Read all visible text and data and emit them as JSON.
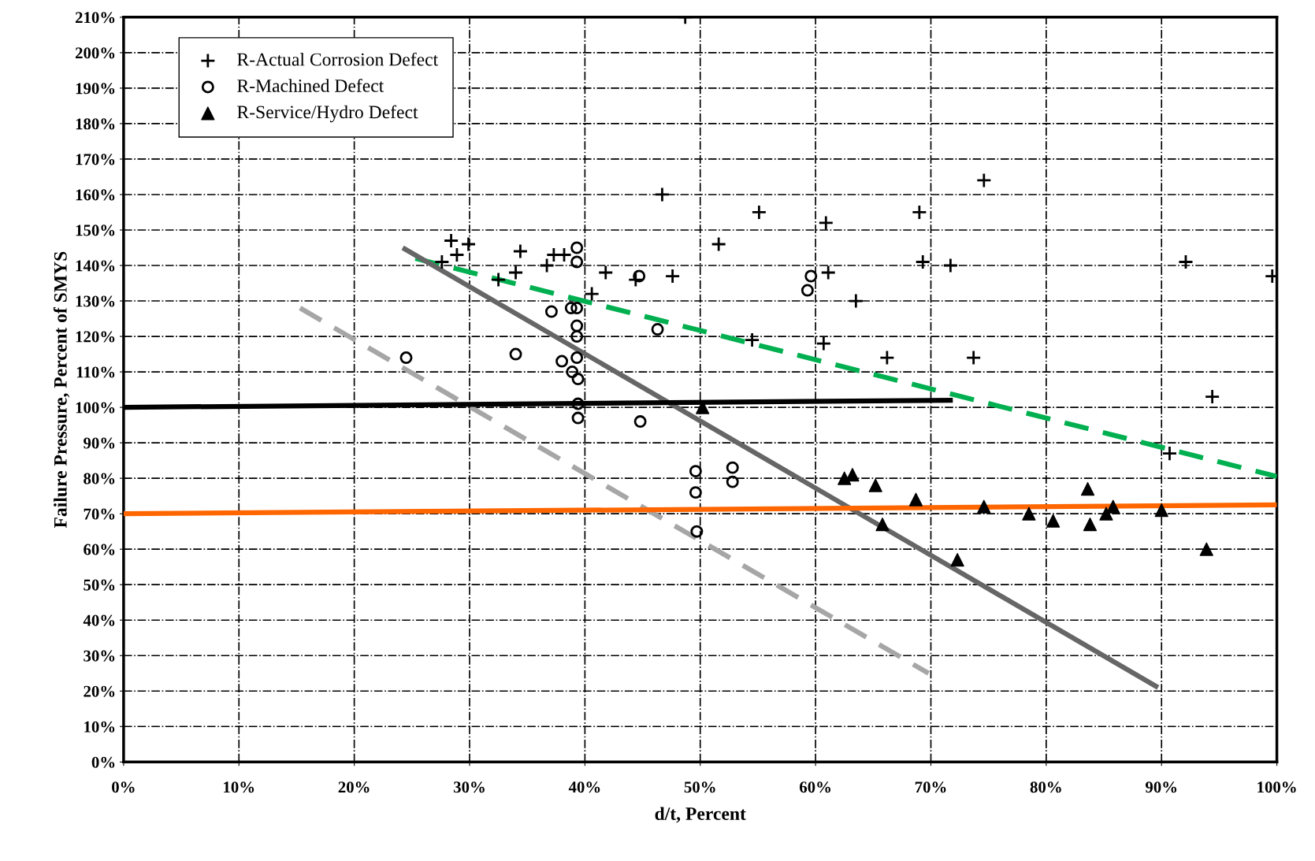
{
  "chart_data": {
    "type": "scatter",
    "xlabel": "d/t, Percent",
    "ylabel": "Failure Pressure, Percent of SMYS",
    "xlim": [
      0,
      100
    ],
    "ylim": [
      0,
      210
    ],
    "xticks": [
      {
        "value": 0,
        "label": "0%"
      },
      {
        "value": 10,
        "label": "10%"
      },
      {
        "value": 20,
        "label": "20%"
      },
      {
        "value": 30,
        "label": "30%"
      },
      {
        "value": 40,
        "label": "40%"
      },
      {
        "value": 50,
        "label": "50%"
      },
      {
        "value": 60,
        "label": "60%"
      },
      {
        "value": 70,
        "label": "70%"
      },
      {
        "value": 80,
        "label": "80%"
      },
      {
        "value": 90,
        "label": "90%"
      },
      {
        "value": 100,
        "label": "100%"
      }
    ],
    "yticks": [
      {
        "value": 0,
        "label": "0%"
      },
      {
        "value": 10,
        "label": "10%"
      },
      {
        "value": 20,
        "label": "20%"
      },
      {
        "value": 30,
        "label": "30%"
      },
      {
        "value": 40,
        "label": "40%"
      },
      {
        "value": 50,
        "label": "50%"
      },
      {
        "value": 60,
        "label": "60%"
      },
      {
        "value": 70,
        "label": "70%"
      },
      {
        "value": 80,
        "label": "80%"
      },
      {
        "value": 90,
        "label": "90%"
      },
      {
        "value": 100,
        "label": "100%"
      },
      {
        "value": 110,
        "label": "110%"
      },
      {
        "value": 120,
        "label": "120%"
      },
      {
        "value": 130,
        "label": "130%"
      },
      {
        "value": 140,
        "label": "140%"
      },
      {
        "value": 150,
        "label": "150%"
      },
      {
        "value": 160,
        "label": "160%"
      },
      {
        "value": 170,
        "label": "170%"
      },
      {
        "value": 180,
        "label": "180%"
      },
      {
        "value": 190,
        "label": "190%"
      },
      {
        "value": 200,
        "label": "200%"
      },
      {
        "value": 210,
        "label": "210%"
      }
    ],
    "grid": true,
    "legend": "top left",
    "series": [
      {
        "name": "R-Actual Corrosion Defect",
        "marker": "cross",
        "color": "#000000",
        "x": [
          48.7,
          46.7,
          55.1,
          60.9,
          51.6,
          69.0,
          74.6,
          92.1,
          99.6,
          69.3,
          71.7,
          61.1,
          47.6,
          41.8,
          44.4,
          40.6,
          63.5,
          54.5,
          60.7,
          66.2,
          73.7,
          94.4,
          90.7,
          28.4,
          29.9,
          28.9,
          27.6,
          34.4,
          34.0,
          32.5,
          36.7,
          37.3,
          38.2
        ],
        "values": [
          210,
          160,
          155,
          152,
          146,
          155,
          164,
          141,
          137,
          141,
          140,
          138,
          137,
          138,
          136,
          132,
          130,
          119,
          118,
          114,
          114,
          103,
          87,
          147,
          146,
          143,
          141,
          144,
          138,
          136,
          140,
          143,
          143
        ]
      },
      {
        "name": "R-Machined Defect",
        "marker": "circle",
        "color": "#000000",
        "x": [
          24.5,
          34.0,
          37.1,
          38.0,
          38.8,
          39.3,
          39.3,
          39.3,
          39.3,
          39.3,
          39.3,
          38.9,
          39.4,
          39.4,
          39.4,
          44.7,
          46.3,
          44.8,
          49.6,
          49.6,
          49.7,
          52.8,
          52.8,
          59.6,
          59.3
        ],
        "values": [
          114,
          115,
          127,
          113,
          128,
          145,
          141,
          128,
          123,
          120,
          114,
          110,
          108,
          101,
          97,
          137,
          122,
          96,
          82,
          76,
          65,
          83,
          79,
          137,
          133
        ]
      },
      {
        "name": "R-Service/Hydro Defect",
        "marker": "triangle",
        "color": "#000000",
        "x": [
          50.2,
          62.5,
          63.2,
          65.2,
          65.8,
          68.7,
          72.3,
          74.6,
          78.5,
          80.6,
          83.6,
          83.8,
          85.2,
          85.8,
          90.0,
          93.9
        ],
        "values": [
          100,
          80,
          81,
          78,
          67,
          74,
          57,
          72,
          70,
          68,
          77,
          67,
          70,
          72,
          71,
          60
        ]
      },
      {
        "type": "line",
        "line_style": "dashed",
        "color": "#00b050",
        "x": [
          25.3,
          100
        ],
        "values": [
          142,
          80.5
        ]
      },
      {
        "type": "line",
        "line_style": "dashed",
        "color": "#a6a6a6",
        "x": [
          15.3,
          69.8
        ],
        "values": [
          128,
          25
        ]
      },
      {
        "type": "line",
        "line_style": "solid",
        "color": "#666666",
        "x": [
          24.2,
          89.7
        ],
        "values": [
          145,
          21
        ]
      },
      {
        "type": "line",
        "line_style": "solid",
        "color": "#000000",
        "x": [
          0,
          71.9
        ],
        "values": [
          100,
          102
        ]
      },
      {
        "type": "line",
        "line_style": "solid",
        "color": "#ff6600",
        "x": [
          0,
          100
        ],
        "values": [
          70,
          72.5
        ]
      }
    ]
  }
}
